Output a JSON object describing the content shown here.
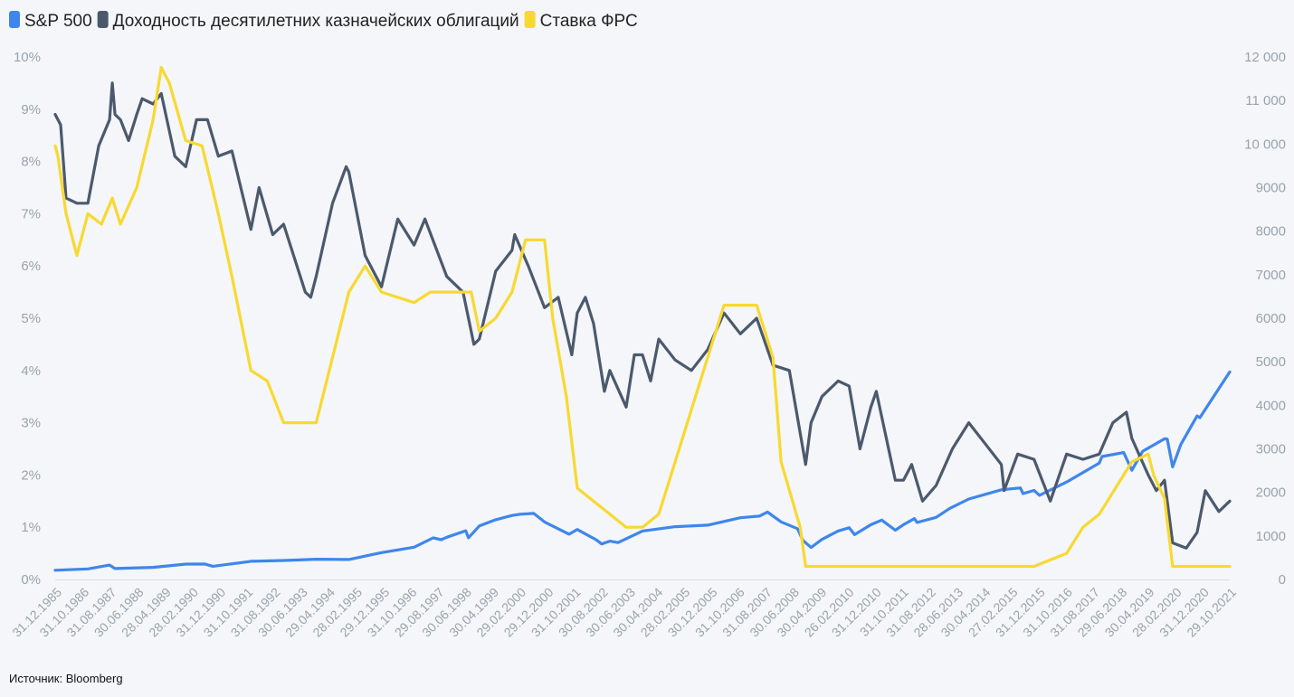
{
  "chart_data": {
    "type": "line",
    "legend": {
      "position": "top-left"
    },
    "series": [
      {
        "name": "S&P 500",
        "color": "#3f86ec",
        "axis": "right",
        "points": [
          [
            "1985-12",
            211
          ],
          [
            "1986-12",
            242
          ],
          [
            "1987-08",
            330
          ],
          [
            "1987-10",
            251
          ],
          [
            "1988-12",
            278
          ],
          [
            "1989-12",
            353
          ],
          [
            "1990-07",
            356
          ],
          [
            "1990-10",
            304
          ],
          [
            "1991-12",
            417
          ],
          [
            "1992-12",
            436
          ],
          [
            "1993-12",
            466
          ],
          [
            "1994-12",
            459
          ],
          [
            "1995-12",
            616
          ],
          [
            "1996-12",
            741
          ],
          [
            "1997-07",
            954
          ],
          [
            "1997-10",
            914
          ],
          [
            "1997-12",
            970
          ],
          [
            "1998-07",
            1120
          ],
          [
            "1998-08",
            957
          ],
          [
            "1998-12",
            1229
          ],
          [
            "1999-06",
            1373
          ],
          [
            "1999-12",
            1469
          ],
          [
            "2000-03",
            1499
          ],
          [
            "2000-08",
            1518
          ],
          [
            "2000-12",
            1320
          ],
          [
            "2001-09",
            1041
          ],
          [
            "2001-12",
            1148
          ],
          [
            "2002-07",
            912
          ],
          [
            "2002-09",
            815
          ],
          [
            "2002-12",
            880
          ],
          [
            "2003-03",
            848
          ],
          [
            "2003-12",
            1112
          ],
          [
            "2004-12",
            1212
          ],
          [
            "2005-12",
            1248
          ],
          [
            "2006-12",
            1418
          ],
          [
            "2007-07",
            1455
          ],
          [
            "2007-10",
            1549
          ],
          [
            "2008-03",
            1322
          ],
          [
            "2008-09",
            1166
          ],
          [
            "2008-11",
            896
          ],
          [
            "2009-02",
            735
          ],
          [
            "2009-06",
            919
          ],
          [
            "2009-12",
            1115
          ],
          [
            "2010-04",
            1187
          ],
          [
            "2010-06",
            1030
          ],
          [
            "2010-12",
            1258
          ],
          [
            "2011-04",
            1363
          ],
          [
            "2011-09",
            1131
          ],
          [
            "2011-12",
            1258
          ],
          [
            "2012-04",
            1398
          ],
          [
            "2012-05",
            1310
          ],
          [
            "2012-12",
            1426
          ],
          [
            "2013-05",
            1631
          ],
          [
            "2013-12",
            1848
          ],
          [
            "2014-12",
            2059
          ],
          [
            "2015-07",
            2104
          ],
          [
            "2015-08",
            1972
          ],
          [
            "2015-12",
            2044
          ],
          [
            "2016-02",
            1932
          ],
          [
            "2016-12",
            2239
          ],
          [
            "2017-12",
            2674
          ],
          [
            "2018-01",
            2824
          ],
          [
            "2018-09",
            2914
          ],
          [
            "2018-12",
            2507
          ],
          [
            "2019-04",
            2946
          ],
          [
            "2019-12",
            3231
          ],
          [
            "2020-01",
            3226
          ],
          [
            "2020-03",
            2585
          ],
          [
            "2020-06",
            3100
          ],
          [
            "2020-12",
            3756
          ],
          [
            "2021-01",
            3714
          ],
          [
            "2021-12",
            4767
          ]
        ]
      },
      {
        "name": "Доходность десятилетних казначейских облигаций",
        "color": "#4c596d",
        "axis": "left",
        "points": [
          [
            "1985-12",
            8.9
          ],
          [
            "1986-02",
            8.7
          ],
          [
            "1986-04",
            7.3
          ],
          [
            "1986-08",
            7.2
          ],
          [
            "1986-12",
            7.2
          ],
          [
            "1987-04",
            8.3
          ],
          [
            "1987-08",
            8.8
          ],
          [
            "1987-09",
            9.5
          ],
          [
            "1987-10",
            8.9
          ],
          [
            "1987-12",
            8.8
          ],
          [
            "1988-03",
            8.4
          ],
          [
            "1988-06",
            8.9
          ],
          [
            "1988-08",
            9.2
          ],
          [
            "1988-12",
            9.1
          ],
          [
            "1989-03",
            9.3
          ],
          [
            "1989-08",
            8.1
          ],
          [
            "1989-12",
            7.9
          ],
          [
            "1990-04",
            8.8
          ],
          [
            "1990-08",
            8.8
          ],
          [
            "1990-12",
            8.1
          ],
          [
            "1991-05",
            8.2
          ],
          [
            "1991-12",
            6.7
          ],
          [
            "1992-03",
            7.5
          ],
          [
            "1992-08",
            6.6
          ],
          [
            "1992-12",
            6.8
          ],
          [
            "1993-08",
            5.5
          ],
          [
            "1993-10",
            5.4
          ],
          [
            "1993-12",
            5.8
          ],
          [
            "1994-06",
            7.2
          ],
          [
            "1994-11",
            7.9
          ],
          [
            "1994-12",
            7.8
          ],
          [
            "1995-06",
            6.2
          ],
          [
            "1995-12",
            5.6
          ],
          [
            "1996-06",
            6.9
          ],
          [
            "1996-12",
            6.4
          ],
          [
            "1997-04",
            6.9
          ],
          [
            "1997-12",
            5.8
          ],
          [
            "1998-06",
            5.5
          ],
          [
            "1998-10",
            4.5
          ],
          [
            "1998-12",
            4.6
          ],
          [
            "1999-06",
            5.9
          ],
          [
            "1999-12",
            6.3
          ],
          [
            "2000-01",
            6.6
          ],
          [
            "2000-06",
            6.0
          ],
          [
            "2000-12",
            5.2
          ],
          [
            "2001-05",
            5.4
          ],
          [
            "2001-10",
            4.3
          ],
          [
            "2001-12",
            5.1
          ],
          [
            "2002-03",
            5.4
          ],
          [
            "2002-06",
            4.9
          ],
          [
            "2002-10",
            3.6
          ],
          [
            "2002-12",
            4.0
          ],
          [
            "2003-06",
            3.3
          ],
          [
            "2003-09",
            4.3
          ],
          [
            "2003-12",
            4.3
          ],
          [
            "2004-03",
            3.8
          ],
          [
            "2004-06",
            4.6
          ],
          [
            "2004-12",
            4.2
          ],
          [
            "2005-06",
            4.0
          ],
          [
            "2005-12",
            4.4
          ],
          [
            "2006-06",
            5.1
          ],
          [
            "2006-12",
            4.7
          ],
          [
            "2007-06",
            5.0
          ],
          [
            "2007-12",
            4.1
          ],
          [
            "2008-06",
            4.0
          ],
          [
            "2008-12",
            2.2
          ],
          [
            "2009-02",
            3.0
          ],
          [
            "2009-06",
            3.5
          ],
          [
            "2009-12",
            3.8
          ],
          [
            "2010-04",
            3.7
          ],
          [
            "2010-08",
            2.5
          ],
          [
            "2010-12",
            3.3
          ],
          [
            "2011-02",
            3.6
          ],
          [
            "2011-09",
            1.9
          ],
          [
            "2011-12",
            1.9
          ],
          [
            "2012-03",
            2.2
          ],
          [
            "2012-07",
            1.5
          ],
          [
            "2012-12",
            1.8
          ],
          [
            "2013-06",
            2.5
          ],
          [
            "2013-12",
            3.0
          ],
          [
            "2014-06",
            2.6
          ],
          [
            "2014-12",
            2.2
          ],
          [
            "2015-01",
            1.7
          ],
          [
            "2015-06",
            2.4
          ],
          [
            "2015-12",
            2.3
          ],
          [
            "2016-06",
            1.5
          ],
          [
            "2016-12",
            2.4
          ],
          [
            "2017-06",
            2.3
          ],
          [
            "2017-12",
            2.4
          ],
          [
            "2018-05",
            3.0
          ],
          [
            "2018-10",
            3.2
          ],
          [
            "2018-12",
            2.7
          ],
          [
            "2019-06",
            2.0
          ],
          [
            "2019-09",
            1.7
          ],
          [
            "2019-12",
            1.9
          ],
          [
            "2020-03",
            0.7
          ],
          [
            "2020-08",
            0.6
          ],
          [
            "2020-12",
            0.9
          ],
          [
            "2021-03",
            1.7
          ],
          [
            "2021-08",
            1.3
          ],
          [
            "2021-12",
            1.5
          ]
        ]
      },
      {
        "name": "Ставка ФРС",
        "color": "#f8d930",
        "axis": "left",
        "points": [
          [
            "1985-12",
            8.3
          ],
          [
            "1986-01",
            8.1
          ],
          [
            "1986-04",
            7.0
          ],
          [
            "1986-08",
            6.2
          ],
          [
            "1986-12",
            7.0
          ],
          [
            "1987-05",
            6.8
          ],
          [
            "1987-09",
            7.3
          ],
          [
            "1987-12",
            6.8
          ],
          [
            "1988-06",
            7.5
          ],
          [
            "1988-12",
            8.8
          ],
          [
            "1989-03",
            9.8
          ],
          [
            "1989-06",
            9.5
          ],
          [
            "1989-12",
            8.4
          ],
          [
            "1990-06",
            8.3
          ],
          [
            "1990-12",
            7.0
          ],
          [
            "1991-05",
            5.8
          ],
          [
            "1991-12",
            4.0
          ],
          [
            "1992-06",
            3.8
          ],
          [
            "1992-12",
            3.0
          ],
          [
            "1993-12",
            3.0
          ],
          [
            "1994-06",
            4.25
          ],
          [
            "1994-12",
            5.5
          ],
          [
            "1995-06",
            6.0
          ],
          [
            "1995-12",
            5.5
          ],
          [
            "1996-12",
            5.3
          ],
          [
            "1997-06",
            5.5
          ],
          [
            "1997-12",
            5.5
          ],
          [
            "1998-09",
            5.5
          ],
          [
            "1998-12",
            4.75
          ],
          [
            "1999-06",
            5.0
          ],
          [
            "1999-12",
            5.5
          ],
          [
            "2000-05",
            6.5
          ],
          [
            "2000-12",
            6.5
          ],
          [
            "2001-03",
            5.0
          ],
          [
            "2001-08",
            3.5
          ],
          [
            "2001-12",
            1.75
          ],
          [
            "2002-12",
            1.25
          ],
          [
            "2003-06",
            1.0
          ],
          [
            "2003-12",
            1.0
          ],
          [
            "2004-06",
            1.25
          ],
          [
            "2004-12",
            2.25
          ],
          [
            "2005-06",
            3.25
          ],
          [
            "2005-12",
            4.25
          ],
          [
            "2006-06",
            5.25
          ],
          [
            "2006-12",
            5.25
          ],
          [
            "2007-06",
            5.25
          ],
          [
            "2007-09",
            4.75
          ],
          [
            "2007-12",
            4.25
          ],
          [
            "2008-03",
            2.25
          ],
          [
            "2008-10",
            1.0
          ],
          [
            "2008-12",
            0.25
          ],
          [
            "2015-12",
            0.25
          ],
          [
            "2016-12",
            0.5
          ],
          [
            "2017-06",
            1.0
          ],
          [
            "2017-12",
            1.25
          ],
          [
            "2018-06",
            1.75
          ],
          [
            "2018-12",
            2.25
          ],
          [
            "2019-06",
            2.4
          ],
          [
            "2019-08",
            2.0
          ],
          [
            "2019-12",
            1.55
          ],
          [
            "2020-03",
            0.25
          ],
          [
            "2021-12",
            0.25
          ]
        ]
      }
    ],
    "left_axis": {
      "range": [
        0,
        10
      ],
      "ticks": [
        "0%",
        "1%",
        "2%",
        "3%",
        "4%",
        "5%",
        "6%",
        "7%",
        "8%",
        "9%",
        "10%"
      ]
    },
    "right_axis": {
      "range": [
        0,
        12000
      ],
      "ticks": [
        "0",
        "1000",
        "2000",
        "3000",
        "4000",
        "5000",
        "6000",
        "7000",
        "8000",
        "9000",
        "10 000",
        "11 000",
        "12 000"
      ]
    },
    "x_range": [
      "1985-12",
      "2021-12"
    ],
    "x_tick_labels": [
      "31.12.1985",
      "31.10.1986",
      "31.08.1987",
      "30.06.1988",
      "28.04.1989",
      "28.02.1990",
      "31.12.1990",
      "31.10.1991",
      "31.08.1992",
      "30.06.1993",
      "29.04.1994",
      "28.02.1995",
      "29.12.1995",
      "31.10.1996",
      "29.08.1997",
      "30.06.1998",
      "30.04.1999",
      "29.02.2000",
      "29.12.2000",
      "31.10.2001",
      "30.08.2002",
      "30.06.2003",
      "30.04.2004",
      "28.02.2005",
      "30.12.2005",
      "31.10.2006",
      "31.08.2007",
      "30.06.2008",
      "30.04.2009",
      "26.02.2010",
      "31.12.2010",
      "31.10.2011",
      "31.08.2012",
      "28.06.2013",
      "30.04.2014",
      "27.02.2015",
      "31.12.2015",
      "31.10.2016",
      "31.08.2017",
      "29.06.2018",
      "30.04.2019",
      "28.02.2020",
      "31.12.2020",
      "29.10.2021"
    ],
    "grid": false
  },
  "source": "Источник: Bloomberg"
}
